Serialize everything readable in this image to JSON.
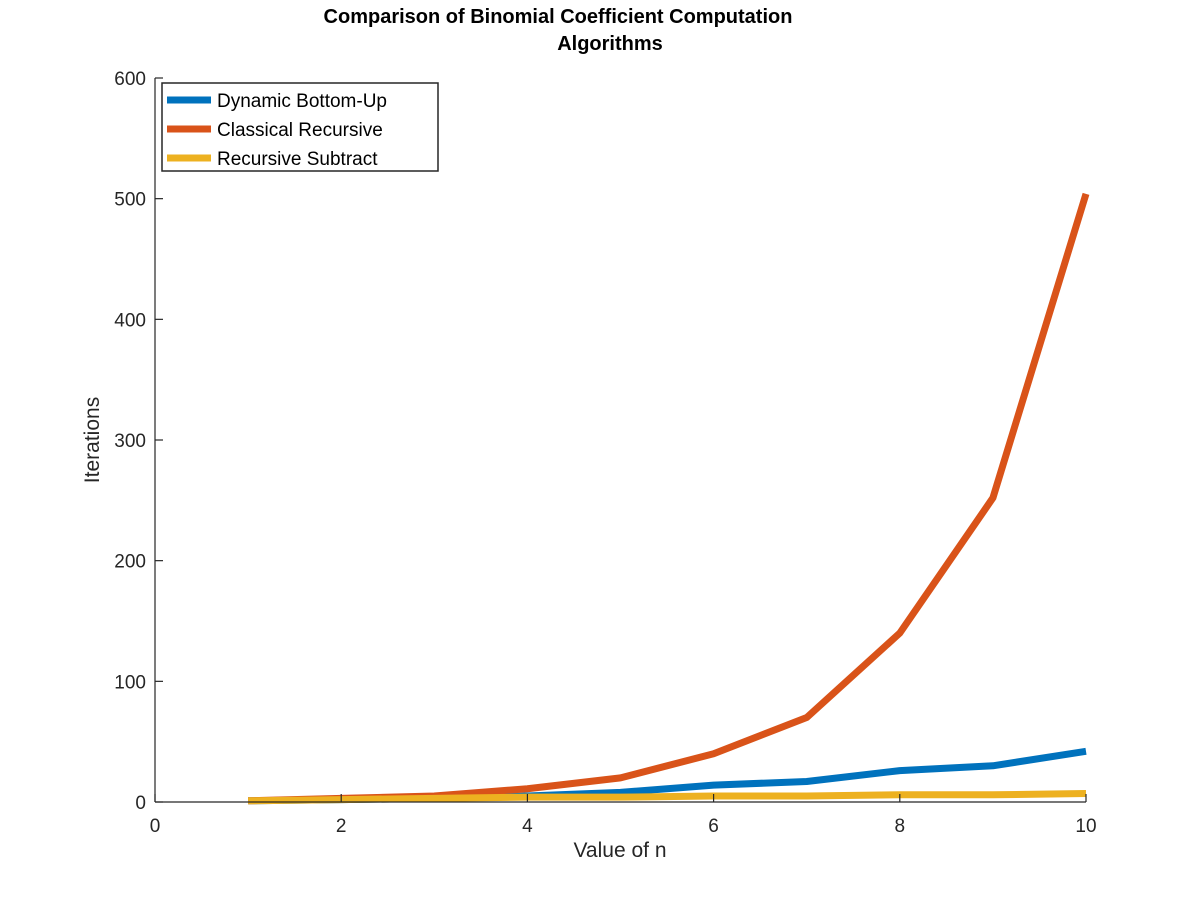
{
  "chart_data": {
    "type": "line",
    "title_lines": [
      "Comparison of Binomial Coefficient Computation",
      "Algorithms"
    ],
    "xlabel": "Value of n",
    "ylabel": "Iterations",
    "xlim": [
      0,
      10
    ],
    "ylim": [
      0,
      600
    ],
    "x_ticks": [
      0,
      2,
      4,
      6,
      8,
      10
    ],
    "y_ticks": [
      0,
      100,
      200,
      300,
      400,
      500,
      600
    ],
    "grid": false,
    "legend_position": "top-left",
    "x": [
      1,
      2,
      3,
      4,
      5,
      6,
      7,
      8,
      9,
      10
    ],
    "series": [
      {
        "name": "Dynamic Bottom-Up",
        "color": "#0072BD",
        "values": [
          1,
          2,
          3,
          5,
          8,
          14,
          17,
          26,
          30,
          42
        ]
      },
      {
        "name": "Classical Recursive",
        "color": "#D95319",
        "values": [
          1,
          3,
          5,
          11,
          20,
          40,
          70,
          140,
          252,
          504
        ]
      },
      {
        "name": "Recursive Subtract",
        "color": "#EDB120",
        "values": [
          1,
          2,
          3,
          4,
          4,
          5,
          5,
          6,
          6,
          7
        ]
      }
    ]
  }
}
